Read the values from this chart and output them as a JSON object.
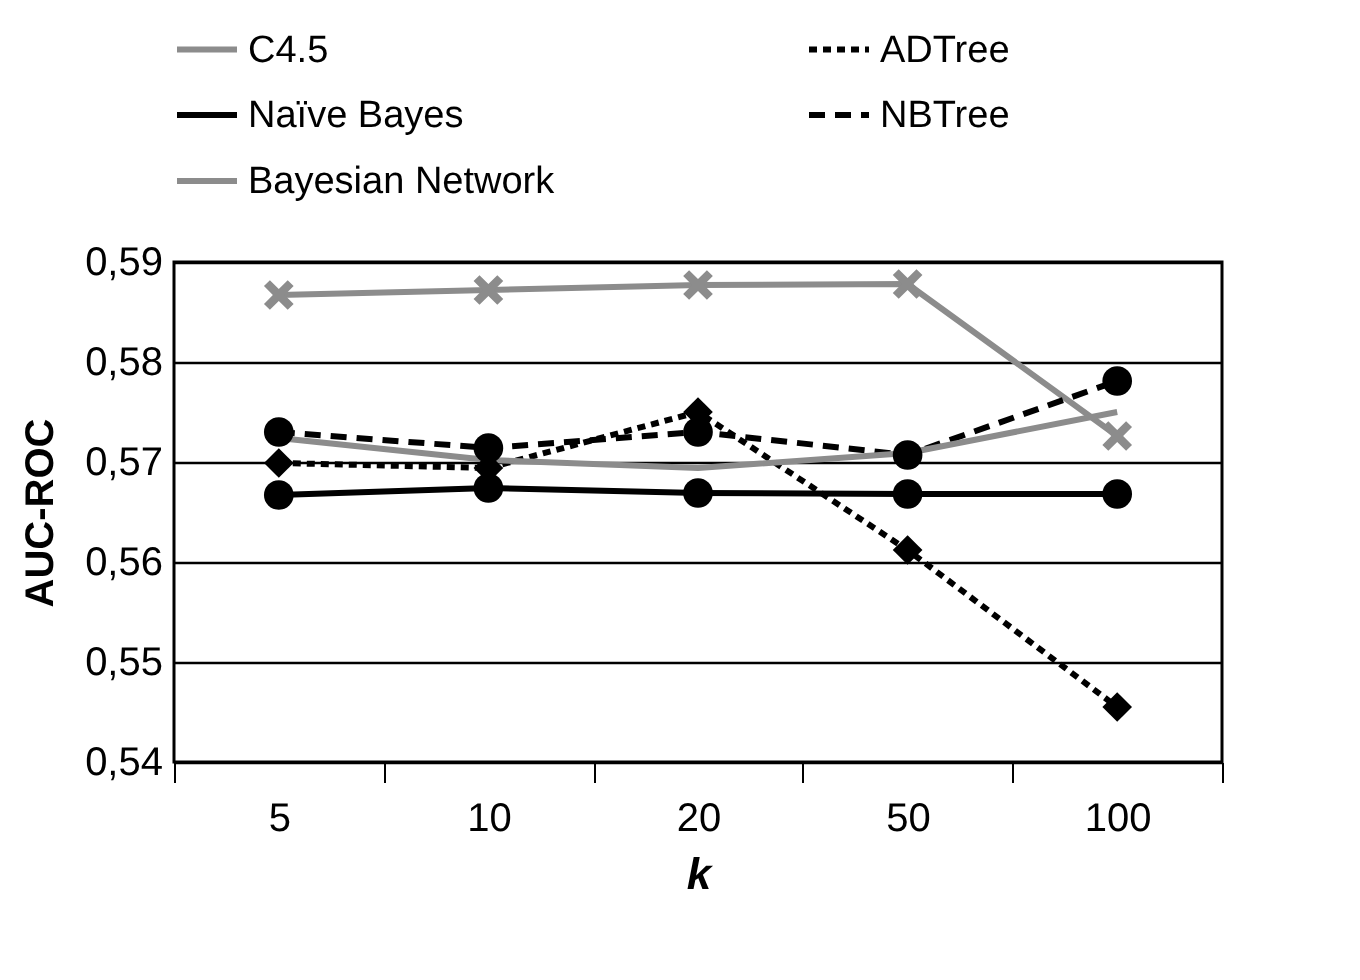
{
  "chart_data": {
    "type": "line",
    "xlabel": "k",
    "ylabel": "AUC-ROC",
    "categories": [
      "5",
      "10",
      "20",
      "50",
      "100"
    ],
    "series": [
      {
        "name": "C4.5",
        "color": "#8c8c8c",
        "marker": "cross",
        "line_style": "solid",
        "values": [
          0.5867,
          0.5872,
          0.5877,
          0.5878,
          0.5726
        ]
      },
      {
        "name": "ADTree",
        "color": "#000000",
        "marker": "diamond",
        "line_style": "dotted",
        "values": [
          0.5699,
          0.5694,
          0.575,
          0.5612,
          0.5455
        ]
      },
      {
        "name": "Naïve Bayes",
        "color": "#000000",
        "marker": "circle",
        "line_style": "solid",
        "values": [
          0.5667,
          0.5674,
          0.5669,
          0.5668,
          0.5668
        ]
      },
      {
        "name": "NBTree",
        "color": "#000000",
        "marker": "circle",
        "line_style": "dashed",
        "values": [
          0.573,
          0.5714,
          0.573,
          0.5707,
          0.5781
        ]
      },
      {
        "name": "Bayesian Network",
        "color": "#8c8c8c",
        "marker": "none",
        "line_style": "solid",
        "values": [
          0.5724,
          0.5702,
          0.5694,
          0.5709,
          0.575
        ]
      }
    ],
    "ylim": [
      0.54,
      0.59
    ],
    "yticks": [
      {
        "value": 0.54,
        "label": "0,54"
      },
      {
        "value": 0.55,
        "label": "0,55"
      },
      {
        "value": 0.56,
        "label": "0,56"
      },
      {
        "value": 0.57,
        "label": "0,57"
      },
      {
        "value": 0.58,
        "label": "0,58"
      },
      {
        "value": 0.59,
        "label": "0,59"
      }
    ],
    "grid": "y",
    "legend": "top left"
  }
}
